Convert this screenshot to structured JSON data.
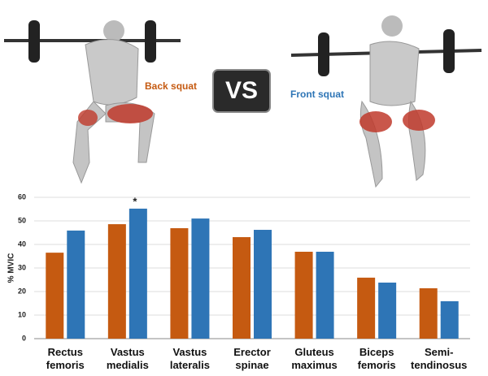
{
  "chart_data": {
    "type": "bar",
    "categories": [
      "Rectus femoris",
      "Vastus medialis",
      "Vastus lateralis",
      "Erector spinae",
      "Gluteus maximus",
      "Biceps femoris",
      "Semi-tendinosus"
    ],
    "series": [
      {
        "name": "Back squat",
        "color": "#c55a11",
        "values": [
          36.5,
          48.6,
          46.9,
          43.1,
          36.9,
          25.9,
          21.4
        ]
      },
      {
        "name": "Front squat",
        "color": "#2e75b6",
        "values": [
          45.9,
          55.2,
          51,
          46.2,
          36.9,
          23.8,
          15.9
        ]
      }
    ],
    "comparison_label": "VS",
    "annotation": "*",
    "y_label": "% MVIC",
    "ylim": [
      0,
      60
    ],
    "yticks": [
      0,
      10,
      20,
      30,
      40,
      50,
      60
    ],
    "grid": true
  }
}
